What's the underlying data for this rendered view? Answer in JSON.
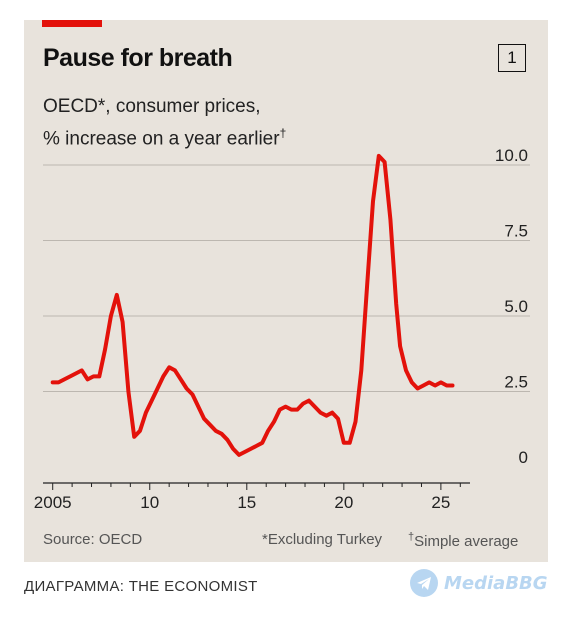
{
  "chart_data": {
    "type": "line",
    "title": "Pause for breath",
    "chart_number": "1",
    "subtitle_lines": [
      "OECD*, consumer prices,",
      "% increase on a year earlier"
    ],
    "subtitle_dagger": "†",
    "xlim": [
      2004.5,
      2026.5
    ],
    "ylim": [
      0,
      10
    ],
    "x_ticks": [
      2005,
      2010,
      2015,
      2020,
      2025
    ],
    "x_tick_labels": [
      "2005",
      "10",
      "15",
      "20",
      "25"
    ],
    "y_ticks": [
      0,
      2.5,
      5,
      7.5,
      10
    ],
    "y_tick_labels": [
      "0",
      "2.5",
      "5.0",
      "7.5",
      "10.0"
    ],
    "grid": true,
    "series": [
      {
        "color": "#e3120b",
        "x": [
          2005.0,
          2005.3,
          2005.6,
          2005.9,
          2006.2,
          2006.5,
          2006.8,
          2007.1,
          2007.4,
          2007.7,
          2008.0,
          2008.3,
          2008.6,
          2008.9,
          2009.2,
          2009.5,
          2009.8,
          2010.1,
          2010.4,
          2010.7,
          2011.0,
          2011.3,
          2011.6,
          2011.9,
          2012.2,
          2012.5,
          2012.8,
          2013.1,
          2013.4,
          2013.7,
          2014.0,
          2014.3,
          2014.6,
          2014.9,
          2015.2,
          2015.5,
          2015.8,
          2016.1,
          2016.4,
          2016.7,
          2017.0,
          2017.3,
          2017.6,
          2017.9,
          2018.2,
          2018.5,
          2018.8,
          2019.1,
          2019.4,
          2019.7,
          2020.0,
          2020.3,
          2020.6,
          2020.9,
          2021.2,
          2021.5,
          2021.8,
          2022.1,
          2022.4,
          2022.7,
          2022.9,
          2023.2,
          2023.5,
          2023.8,
          2024.1,
          2024.4,
          2024.7,
          2025.0,
          2025.3,
          2025.6
        ],
        "y": [
          2.8,
          2.8,
          2.9,
          3.0,
          3.1,
          3.2,
          2.9,
          3.0,
          3.0,
          3.9,
          5.0,
          5.7,
          4.8,
          2.5,
          1.0,
          1.2,
          1.8,
          2.2,
          2.6,
          3.0,
          3.3,
          3.2,
          2.9,
          2.6,
          2.4,
          2.0,
          1.6,
          1.4,
          1.2,
          1.1,
          0.9,
          0.6,
          0.4,
          0.5,
          0.6,
          0.7,
          0.8,
          1.2,
          1.5,
          1.9,
          2.0,
          1.9,
          1.9,
          2.1,
          2.2,
          2.0,
          1.8,
          1.7,
          1.8,
          1.6,
          0.8,
          0.8,
          1.5,
          3.2,
          6.0,
          8.8,
          10.3,
          10.1,
          8.2,
          5.4,
          4.0,
          3.2,
          2.8,
          2.6,
          2.7,
          2.8,
          2.7,
          2.8,
          2.7,
          2.7
        ]
      }
    ],
    "source": "Source: OECD",
    "footnote_star": "*Excluding Turkey",
    "footnote_dagger_mark": "†",
    "footnote_dagger": "Simple average"
  },
  "credit": "ДИАГРАММА: THE ECONOMIST",
  "watermark": {
    "text": "MediaBBG",
    "icon": "telegram-icon"
  }
}
